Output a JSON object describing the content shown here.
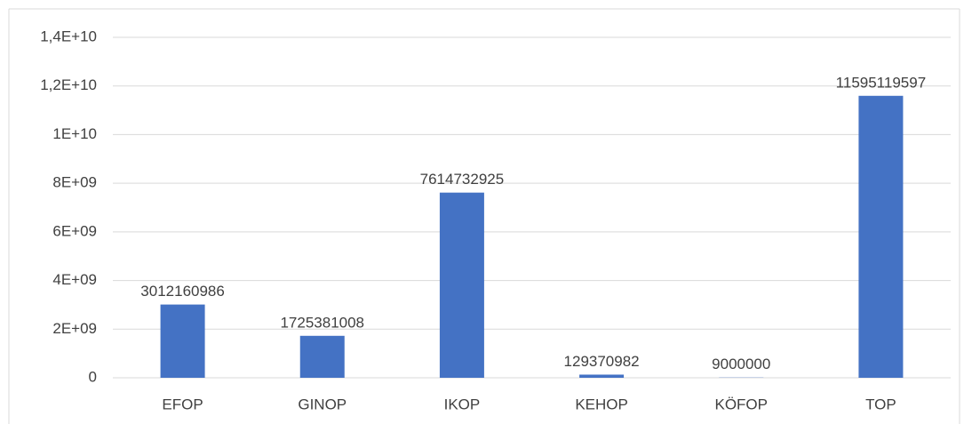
{
  "chart_data": {
    "type": "bar",
    "categories": [
      "EFOP",
      "GINOP",
      "IKOP",
      "KEHOP",
      "KÖFOP",
      "TOP"
    ],
    "values": [
      3012160986,
      1725381008,
      7614732925,
      129370982,
      9000000,
      11595119597
    ],
    "color": "#4472c4",
    "ylim": [
      0,
      14000000000
    ],
    "yticks": [
      0,
      {
        "value": 2000000000,
        "label": "2E+09"
      },
      {
        "value": 4000000000,
        "label": "4E+09"
      },
      {
        "value": 6000000000,
        "label": "6E+09"
      },
      {
        "value": 8000000000,
        "label": "8E+09"
      },
      {
        "value": 10000000000,
        "label": "1E+10"
      },
      {
        "value": 12000000000,
        "label": "1,2E+10"
      },
      {
        "value": 14000000000,
        "label": "1,4E+10"
      }
    ],
    "grid": true
  }
}
